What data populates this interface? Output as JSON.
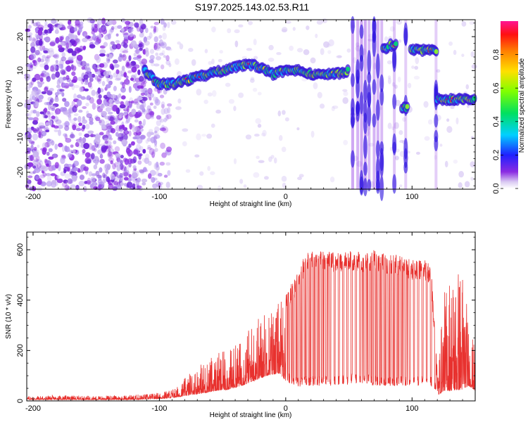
{
  "title": "S197.2025.143.02.53.R11",
  "chart_data": [
    {
      "id": "spectrogram",
      "type": "heatmap",
      "xlabel": "Height of straight line (km)",
      "ylabel": "Frequency (Hz)",
      "xlim": [
        -205,
        150
      ],
      "ylim": [
        -25,
        25
      ],
      "x_ticks": [
        -200,
        -100,
        0,
        100
      ],
      "y_ticks": [
        -20,
        -10,
        0,
        10,
        20
      ],
      "colorbar": {
        "label": "Normalized spectral amplitude",
        "range": [
          0,
          1
        ],
        "ticks": [
          "0.0",
          "0.2",
          "0.4",
          "0.6",
          "0.8"
        ]
      },
      "ridges": [
        {
          "x": [
            -112,
            -100,
            -90,
            -80,
            -70,
            -60,
            -50,
            -40,
            -30,
            -20,
            -10,
            0,
            10,
            20,
            30,
            40,
            50
          ],
          "y": [
            10,
            6,
            6,
            7,
            8,
            9,
            10,
            11,
            12,
            11,
            9,
            10,
            10,
            9,
            9,
            9,
            10
          ]
        },
        {
          "x": [
            77,
            82
          ],
          "y": [
            16.5,
            16.5
          ]
        },
        {
          "x": [
            83,
            88
          ],
          "y": [
            17.5,
            17.5
          ]
        },
        {
          "x": [
            92,
            97
          ],
          "y": [
            -1,
            -1
          ]
        },
        {
          "x": [
            99,
            120
          ],
          "y": [
            16,
            16
          ]
        },
        {
          "x": [
            120,
            150
          ],
          "y": [
            1.5,
            1.5
          ]
        }
      ],
      "grid": false
    },
    {
      "id": "snr",
      "type": "line",
      "xlabel": "Height of straight line (km)",
      "ylabel": "SNR (10 * v/v)",
      "xlim": [
        -205,
        150
      ],
      "ylim": [
        0,
        670
      ],
      "x_ticks": [
        -200,
        -100,
        0,
        100
      ],
      "y_ticks": [
        0,
        200,
        400,
        600
      ],
      "color": "#e8312e",
      "series": [
        {
          "x": [
            -205,
            -180,
            -150,
            -120,
            -105,
            -95,
            -85,
            -75,
            -65,
            -55,
            -45,
            -35,
            -25,
            -15,
            -5,
            0,
            5,
            10,
            15,
            20,
            30,
            40,
            50,
            60,
            70,
            80,
            90,
            100,
            110,
            115,
            120,
            125,
            130,
            140,
            145,
            150
          ],
          "y": [
            20,
            22,
            20,
            25,
            30,
            40,
            60,
            120,
            160,
            190,
            200,
            250,
            330,
            380,
            400,
            420,
            470,
            520,
            580,
            600,
            600,
            590,
            600,
            590,
            600,
            580,
            580,
            560,
            560,
            540,
            120,
            420,
            540,
            570,
            310,
            210
          ],
          "low": [
            5,
            5,
            5,
            5,
            8,
            10,
            15,
            25,
            30,
            40,
            45,
            60,
            80,
            100,
            110,
            80,
            60,
            55,
            60,
            60,
            60,
            60,
            65,
            70,
            60,
            55,
            60,
            60,
            60,
            60,
            20,
            40,
            40,
            45,
            60,
            40
          ]
        }
      ],
      "grid": false
    }
  ]
}
